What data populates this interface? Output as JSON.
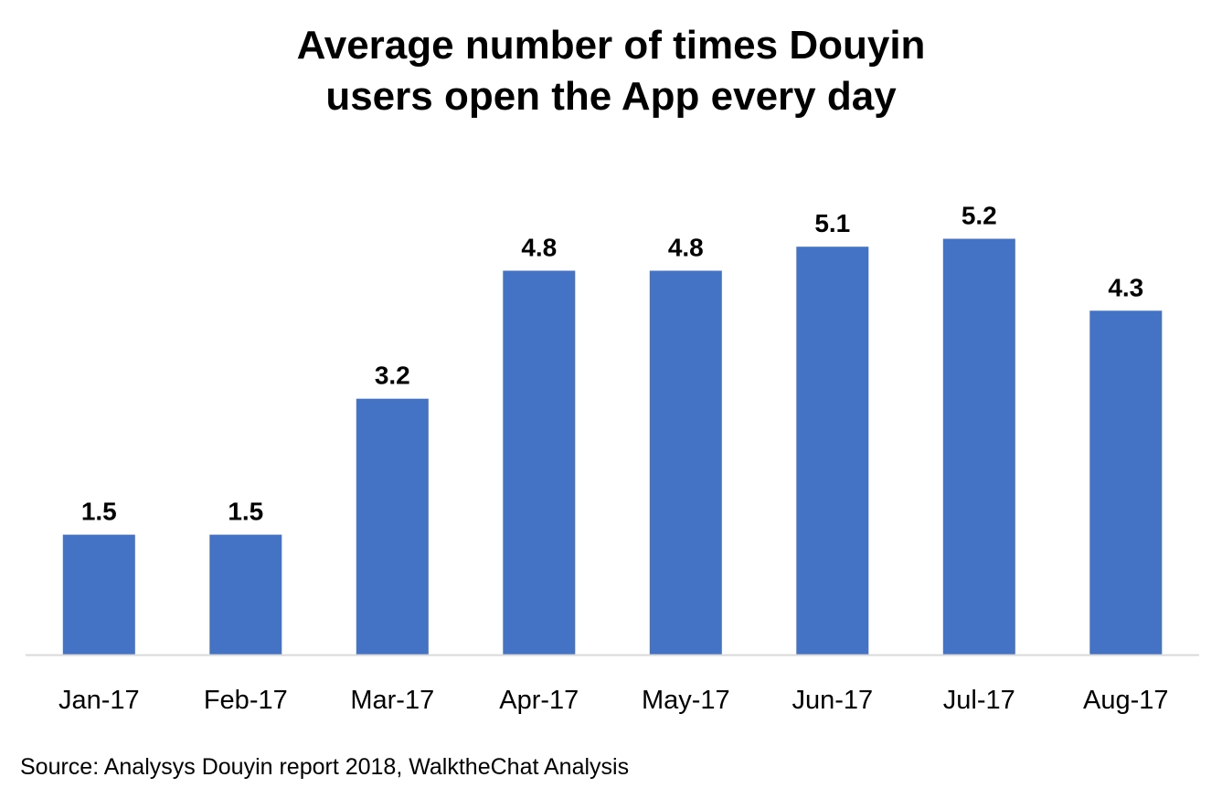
{
  "chart_data": {
    "type": "bar",
    "title_lines": [
      "Average number of times Douyin",
      "users open the App every day"
    ],
    "categories": [
      "Jan-17",
      "Feb-17",
      "Mar-17",
      "Apr-17",
      "May-17",
      "Jun-17",
      "Jul-17",
      "Aug-17"
    ],
    "values": [
      1.5,
      1.5,
      3.2,
      4.8,
      4.8,
      5.1,
      5.2,
      4.3
    ],
    "value_labels": [
      "1.5",
      "1.5",
      "3.2",
      "4.8",
      "4.8",
      "5.1",
      "5.2",
      "4.3"
    ],
    "xlabel": "",
    "ylabel": "",
    "ylim": [
      0,
      6
    ],
    "grid": false,
    "legend": "none",
    "bar_color": "#4472C4",
    "axis_color": "#D9D9D9"
  },
  "source": "Source: Analysys Douyin report 2018, WalktheChat Analysis"
}
